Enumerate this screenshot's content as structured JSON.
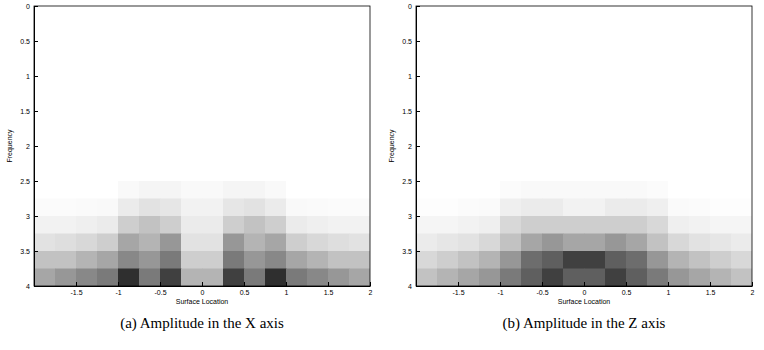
{
  "chart_data": [
    {
      "type": "heatmap",
      "title": "(a) Amplitude in the X axis",
      "xlabel": "Surface Location",
      "ylabel": "Frequency",
      "xlim": [
        -2,
        2
      ],
      "ylim": [
        0,
        4
      ],
      "xticks": [
        -1.5,
        -1,
        -0.5,
        0,
        0.5,
        1,
        1.5,
        2
      ],
      "yticks": [
        0,
        0.5,
        1,
        1.5,
        2,
        2.5,
        3,
        3.5,
        4
      ],
      "x": [
        -1.875,
        -1.625,
        -1.375,
        -1.125,
        -0.875,
        -0.625,
        -0.375,
        -0.125,
        0.125,
        0.375,
        0.625,
        0.875,
        1.125,
        1.375,
        1.625,
        1.875
      ],
      "y": [
        0.125,
        0.375,
        0.625,
        0.875,
        1.125,
        1.375,
        1.625,
        1.875,
        2.125,
        2.375,
        2.625,
        2.875,
        3.125,
        3.375,
        3.625,
        3.875
      ],
      "zlim": [
        0,
        1
      ],
      "color": "gray",
      "values": [
        [
          0,
          0,
          0,
          0,
          0,
          0,
          0,
          0,
          0,
          0,
          0,
          0,
          0,
          0,
          0,
          0
        ],
        [
          0,
          0,
          0,
          0,
          0,
          0,
          0,
          0,
          0,
          0,
          0,
          0,
          0,
          0,
          0,
          0
        ],
        [
          0,
          0,
          0,
          0,
          0,
          0,
          0,
          0,
          0,
          0,
          0,
          0,
          0,
          0,
          0,
          0
        ],
        [
          0,
          0,
          0,
          0,
          0,
          0,
          0,
          0,
          0,
          0,
          0,
          0,
          0,
          0,
          0,
          0
        ],
        [
          0,
          0,
          0,
          0,
          0,
          0,
          0,
          0,
          0,
          0,
          0,
          0,
          0,
          0,
          0,
          0
        ],
        [
          0,
          0,
          0,
          0,
          0,
          0,
          0,
          0,
          0,
          0,
          0,
          0,
          0,
          0,
          0,
          0
        ],
        [
          0,
          0,
          0,
          0,
          0,
          0,
          0,
          0,
          0,
          0,
          0,
          0,
          0,
          0,
          0,
          0
        ],
        [
          0,
          0,
          0,
          0,
          0,
          0,
          0,
          0,
          0,
          0,
          0,
          0,
          0,
          0,
          0,
          0
        ],
        [
          0,
          0,
          0,
          0,
          0,
          0,
          0,
          0,
          0,
          0,
          0,
          0,
          0,
          0,
          0,
          0
        ],
        [
          0,
          0,
          0,
          0,
          0,
          0,
          0,
          0,
          0,
          0,
          0,
          0,
          0,
          0,
          0,
          0
        ],
        [
          0,
          0,
          0,
          0,
          0.05,
          0.08,
          0.08,
          0.05,
          0.05,
          0.08,
          0.08,
          0.05,
          0,
          0,
          0,
          0
        ],
        [
          0.03,
          0.03,
          0.04,
          0.05,
          0.15,
          0.2,
          0.18,
          0.1,
          0.1,
          0.18,
          0.2,
          0.15,
          0.05,
          0.04,
          0.03,
          0.03
        ],
        [
          0.1,
          0.1,
          0.12,
          0.15,
          0.3,
          0.35,
          0.3,
          0.15,
          0.15,
          0.3,
          0.35,
          0.3,
          0.15,
          0.12,
          0.1,
          0.1
        ],
        [
          0.2,
          0.22,
          0.25,
          0.3,
          0.45,
          0.4,
          0.5,
          0.2,
          0.2,
          0.5,
          0.4,
          0.45,
          0.3,
          0.25,
          0.22,
          0.2
        ],
        [
          0.35,
          0.35,
          0.4,
          0.45,
          0.55,
          0.5,
          0.6,
          0.3,
          0.3,
          0.6,
          0.5,
          0.55,
          0.45,
          0.4,
          0.35,
          0.35
        ],
        [
          0.45,
          0.5,
          0.55,
          0.6,
          0.85,
          0.6,
          0.8,
          0.4,
          0.4,
          0.8,
          0.6,
          0.85,
          0.6,
          0.55,
          0.5,
          0.45
        ]
      ]
    },
    {
      "type": "heatmap",
      "title": "(b) Amplitude in the Z axis",
      "xlabel": "Surface Location",
      "ylabel": "Frequency",
      "xlim": [
        -2,
        2
      ],
      "ylim": [
        0,
        4
      ],
      "xticks": [
        -1.5,
        -1,
        -0.5,
        0,
        0.5,
        1,
        1.5,
        2
      ],
      "yticks": [
        0,
        0.5,
        1,
        1.5,
        2,
        2.5,
        3,
        3.5,
        4
      ],
      "x": [
        -1.875,
        -1.625,
        -1.375,
        -1.125,
        -0.875,
        -0.625,
        -0.375,
        -0.125,
        0.125,
        0.375,
        0.625,
        0.875,
        1.125,
        1.375,
        1.625,
        1.875
      ],
      "y": [
        0.125,
        0.375,
        0.625,
        0.875,
        1.125,
        1.375,
        1.625,
        1.875,
        2.125,
        2.375,
        2.625,
        2.875,
        3.125,
        3.375,
        3.625,
        3.875
      ],
      "zlim": [
        0,
        1
      ],
      "color": "gray",
      "values": [
        [
          0,
          0,
          0,
          0,
          0,
          0,
          0,
          0,
          0,
          0,
          0,
          0,
          0,
          0,
          0,
          0
        ],
        [
          0,
          0,
          0,
          0,
          0,
          0,
          0,
          0,
          0,
          0,
          0,
          0,
          0,
          0,
          0,
          0
        ],
        [
          0,
          0,
          0,
          0,
          0,
          0,
          0,
          0,
          0,
          0,
          0,
          0,
          0,
          0,
          0,
          0
        ],
        [
          0,
          0,
          0,
          0,
          0,
          0,
          0,
          0,
          0,
          0,
          0,
          0,
          0,
          0,
          0,
          0
        ],
        [
          0,
          0,
          0,
          0,
          0,
          0,
          0,
          0,
          0,
          0,
          0,
          0,
          0,
          0,
          0,
          0
        ],
        [
          0,
          0,
          0,
          0,
          0,
          0,
          0,
          0,
          0,
          0,
          0,
          0,
          0,
          0,
          0,
          0
        ],
        [
          0,
          0,
          0,
          0,
          0,
          0,
          0,
          0,
          0,
          0,
          0,
          0,
          0,
          0,
          0,
          0
        ],
        [
          0,
          0,
          0,
          0,
          0,
          0,
          0,
          0,
          0,
          0,
          0,
          0,
          0,
          0,
          0,
          0
        ],
        [
          0,
          0,
          0,
          0,
          0,
          0,
          0,
          0,
          0,
          0,
          0,
          0,
          0,
          0,
          0,
          0
        ],
        [
          0,
          0,
          0,
          0,
          0,
          0,
          0,
          0,
          0,
          0,
          0,
          0,
          0,
          0,
          0,
          0
        ],
        [
          0,
          0,
          0,
          0,
          0.03,
          0.05,
          0.05,
          0.05,
          0.05,
          0.05,
          0.05,
          0.03,
          0,
          0,
          0,
          0
        ],
        [
          0.02,
          0.02,
          0.03,
          0.04,
          0.12,
          0.15,
          0.15,
          0.1,
          0.1,
          0.15,
          0.15,
          0.12,
          0.04,
          0.03,
          0.02,
          0.02
        ],
        [
          0.08,
          0.08,
          0.1,
          0.12,
          0.25,
          0.3,
          0.3,
          0.3,
          0.3,
          0.3,
          0.3,
          0.25,
          0.12,
          0.1,
          0.08,
          0.08
        ],
        [
          0.15,
          0.18,
          0.2,
          0.25,
          0.35,
          0.45,
          0.5,
          0.45,
          0.45,
          0.5,
          0.45,
          0.35,
          0.25,
          0.2,
          0.18,
          0.15
        ],
        [
          0.25,
          0.3,
          0.35,
          0.4,
          0.5,
          0.65,
          0.7,
          0.8,
          0.8,
          0.7,
          0.65,
          0.5,
          0.4,
          0.35,
          0.3,
          0.25
        ],
        [
          0.35,
          0.4,
          0.45,
          0.5,
          0.6,
          0.7,
          0.8,
          0.7,
          0.7,
          0.8,
          0.7,
          0.6,
          0.5,
          0.45,
          0.4,
          0.35
        ]
      ]
    }
  ]
}
